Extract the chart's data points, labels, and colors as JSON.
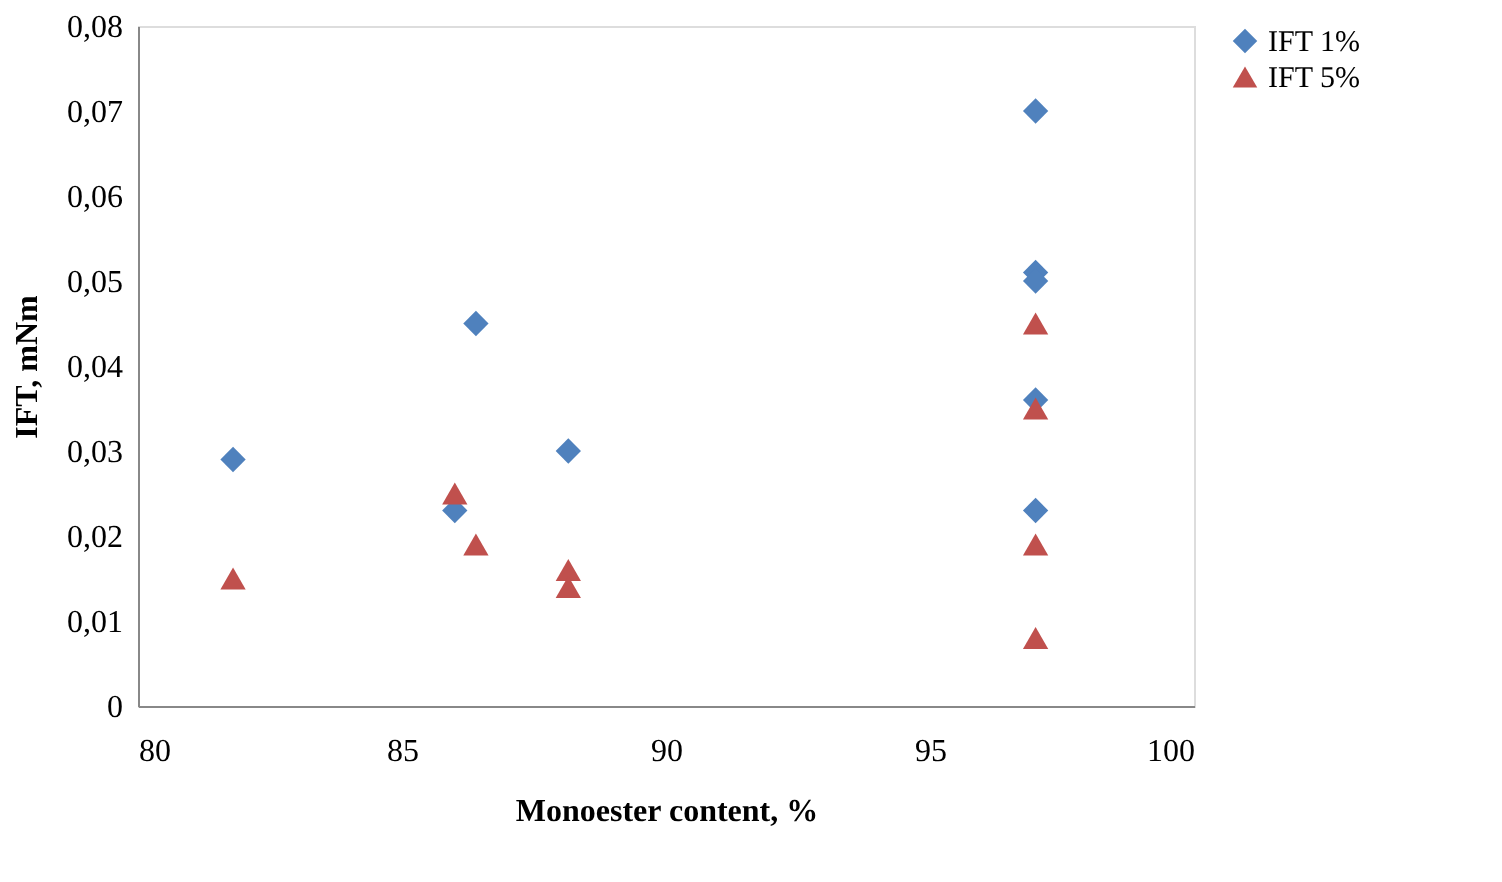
{
  "chart_data": {
    "type": "scatter",
    "xlabel": "Monoester content, %",
    "ylabel": "IFT, mNm",
    "xlim": [
      80,
      100
    ],
    "xticks": [
      80,
      85,
      90,
      95,
      100
    ],
    "ylim": [
      0,
      0.08
    ],
    "yticks": [
      0,
      {
        "value": 0.01,
        "label": "0,01"
      },
      {
        "value": 0.02,
        "label": "0,02"
      },
      {
        "value": 0.03,
        "label": "0,03"
      },
      {
        "value": 0.04,
        "label": "0,04"
      },
      {
        "value": 0.05,
        "label": "0,05"
      },
      {
        "value": 0.06,
        "label": "0,06"
      },
      {
        "value": 0.07,
        "label": "0,07"
      },
      {
        "value": 0.08,
        "label": "0,08"
      }
    ],
    "grid": false,
    "legend": "right",
    "series": [
      {
        "name": "IFT 1%",
        "color": "#4f81bd",
        "marker": "diamond",
        "x": [
          81.8,
          86.0,
          86.4,
          88.15,
          97.0,
          97.0,
          97.0,
          97.0,
          97.0
        ],
        "values": [
          0.029,
          0.023,
          0.045,
          0.03,
          0.07,
          0.051,
          0.05,
          0.036,
          0.023
        ]
      },
      {
        "name": "IFT 5%",
        "color": "#c0504d",
        "marker": "triangle",
        "x": [
          81.8,
          86.0,
          86.4,
          88.15,
          88.15,
          97.0,
          97.0,
          97.0,
          97.0
        ],
        "values": [
          0.015,
          0.025,
          0.019,
          0.016,
          0.014,
          0.045,
          0.035,
          0.019,
          0.008
        ]
      }
    ]
  }
}
